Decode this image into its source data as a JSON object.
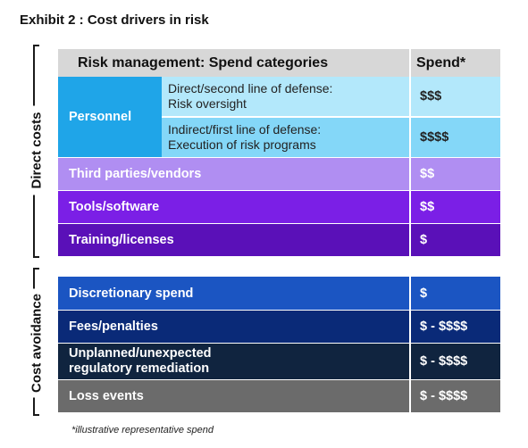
{
  "title": "Exhibit 2 : Cost drivers in risk",
  "side_labels": {
    "direct": "Direct costs",
    "avoidance": "Cost avoidance"
  },
  "header": {
    "category": "Risk management: Spend categories",
    "spend": "Spend*"
  },
  "personnel": {
    "label": "Personnel",
    "sub": [
      {
        "line1": "Direct/second line of defense:",
        "line2": "Risk oversight",
        "spend": "$$$"
      },
      {
        "line1": "Indirect/first line of defense:",
        "line2": "Execution of risk programs",
        "spend": "$$$$"
      }
    ]
  },
  "direct_rows": [
    {
      "label": "Third parties/vendors",
      "spend": "$$",
      "color": "#b08ef2"
    },
    {
      "label": "Tools/software",
      "spend": "$$",
      "color": "#7b1fe6"
    },
    {
      "label": "Training/licenses",
      "spend": "$",
      "color": "#5a10b8"
    }
  ],
  "avoidance_rows": [
    {
      "label": "Discretionary spend",
      "spend": "$",
      "color": "#1b55c2"
    },
    {
      "label": "Fees/penalties",
      "spend": "$ - $$$$",
      "color": "#0a2a78"
    },
    {
      "label1": "Unplanned/unexpected",
      "label2": "regulatory remediation",
      "spend": "$ - $$$$",
      "color": "#10243f"
    },
    {
      "label": "Loss events",
      "spend": "$ - $$$$",
      "color": "#6b6b6b"
    }
  ],
  "colors": {
    "personnel": "#1fa5e8",
    "sub1": "#b3e8fb",
    "sub2": "#84d7f8",
    "header": "#d7d7d7"
  },
  "footnote": "*illustrative representative spend"
}
